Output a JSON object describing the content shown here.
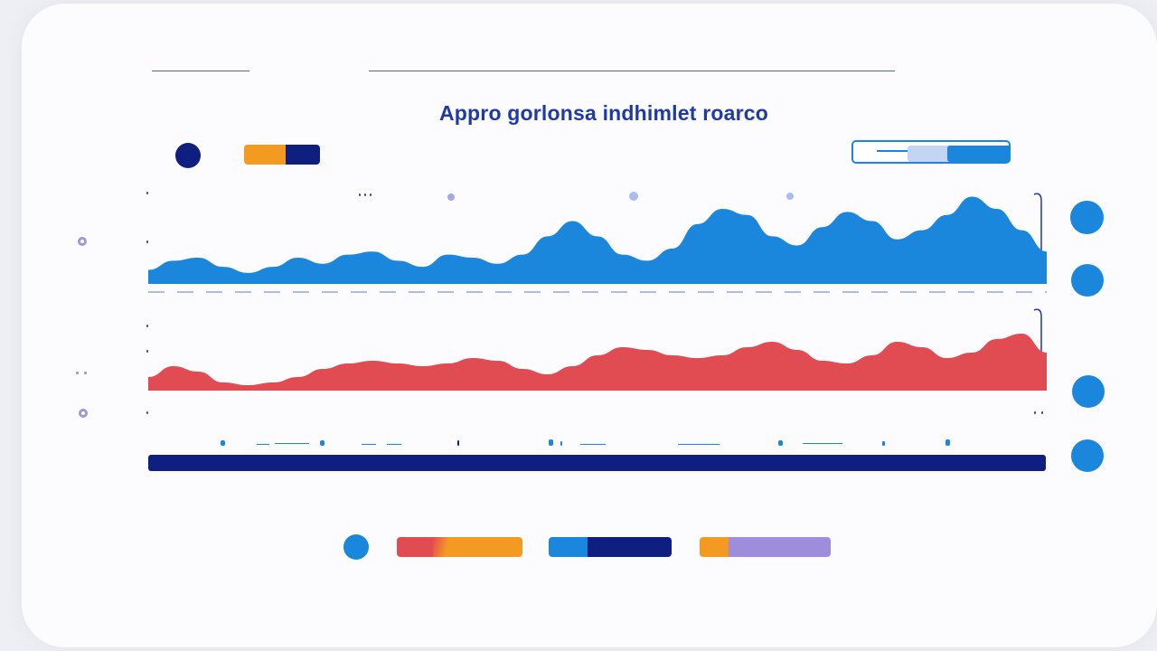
{
  "header": {
    "title": "Appro gorlonsa indhimlet roarco"
  },
  "colors": {
    "navy": "#0f1f80",
    "blue": "#1a87dd",
    "red": "#e14b52",
    "orange": "#f39a22",
    "lavender": "#9d8ddb",
    "pale_blue": "#bfd3f2",
    "title": "#1f3aa5"
  },
  "top_legend": [
    {
      "name": "navy-dot",
      "color": "#0f1f80"
    },
    {
      "name": "orange-navy-pill",
      "colors": [
        "#f39a22",
        "#0f1f80"
      ],
      "split": 0.55
    }
  ],
  "range_control": {
    "selected_fraction_start": 0.35,
    "selected_fraction_end": 0.62
  },
  "charts": {
    "blue_area": {
      "type": "area",
      "color": "#1a87dd",
      "values": [
        8,
        14,
        16,
        10,
        6,
        10,
        16,
        12,
        18,
        20,
        14,
        10,
        18,
        16,
        12,
        18,
        30,
        40,
        30,
        18,
        14,
        22,
        38,
        48,
        44,
        30,
        24,
        36,
        46,
        40,
        28,
        34,
        44,
        56,
        48,
        34,
        20
      ]
    },
    "red_area": {
      "type": "area",
      "color": "#e14b52",
      "values": [
        10,
        18,
        14,
        6,
        4,
        6,
        10,
        16,
        20,
        22,
        20,
        18,
        20,
        24,
        22,
        16,
        12,
        18,
        26,
        32,
        30,
        26,
        24,
        26,
        32,
        36,
        30,
        22,
        20,
        26,
        36,
        32,
        24,
        28,
        38,
        42,
        28
      ]
    }
  },
  "bottom_legend": [
    {
      "name": "blue-dot",
      "color": "#1a87dd"
    },
    {
      "name": "red-orange-pill",
      "colors": [
        "#e14b52",
        "#f39a22"
      ],
      "split": 0.3
    },
    {
      "name": "blue-navy-pill",
      "colors": [
        "#1a87dd",
        "#0f1f80"
      ],
      "split": 0.3
    },
    {
      "name": "orange-lavender-pill",
      "colors": [
        "#f39a22",
        "#9d8ddb"
      ],
      "split": 0.22
    }
  ]
}
